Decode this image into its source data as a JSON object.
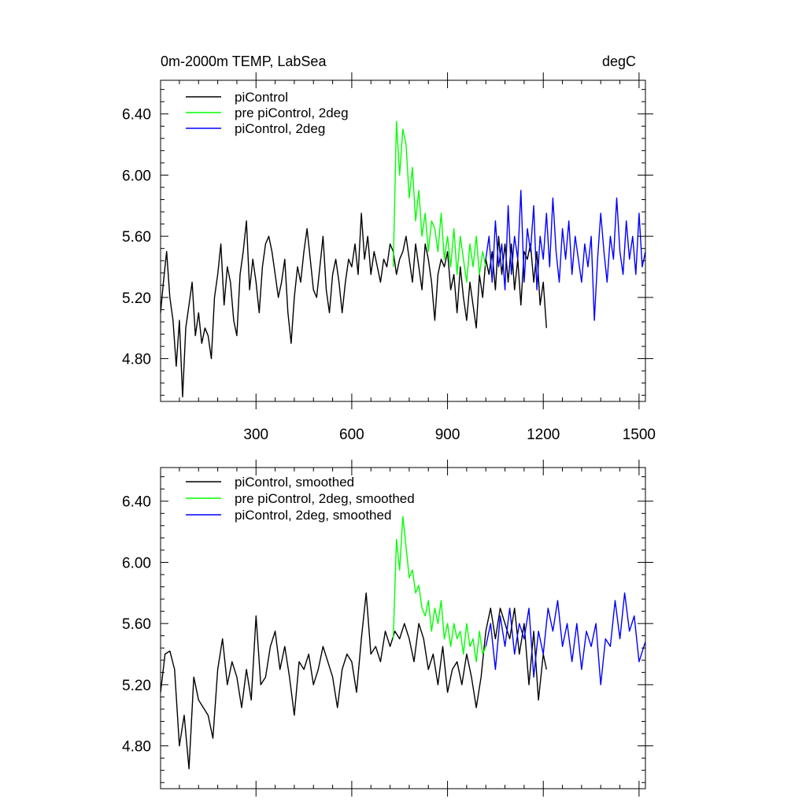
{
  "chart_data": [
    {
      "type": "line",
      "title_left": "0m-2000m TEMP, LabSea",
      "title_right": "degC",
      "xlabel": "",
      "ylabel": "",
      "xlim": [
        1,
        1520
      ],
      "ylim": [
        4.52,
        6.62
      ],
      "xticks": [
        300,
        600,
        900,
        1200,
        1500
      ],
      "xtick_labels": [
        "300",
        "600",
        "900",
        "1200",
        "1500"
      ],
      "show_xtick_labels": true,
      "yticks": [
        4.8,
        5.2,
        5.6,
        6.0,
        6.4
      ],
      "ytick_labels": [
        "4.80",
        "5.20",
        "5.60",
        "6.00",
        "6.40"
      ],
      "legend": [
        "piControl",
        "pre piControl, 2deg",
        "piControl, 2deg"
      ],
      "series": [
        {
          "name": "piControl",
          "color": "#000000",
          "x": [
            1,
            10,
            20,
            30,
            40,
            50,
            60,
            70,
            80,
            90,
            100,
            110,
            120,
            130,
            140,
            150,
            160,
            170,
            180,
            190,
            200,
            210,
            220,
            230,
            240,
            250,
            260,
            270,
            280,
            290,
            300,
            310,
            320,
            330,
            340,
            350,
            360,
            370,
            380,
            390,
            400,
            410,
            420,
            430,
            440,
            450,
            460,
            470,
            480,
            490,
            500,
            510,
            520,
            530,
            540,
            550,
            560,
            570,
            580,
            590,
            600,
            610,
            620,
            630,
            640,
            650,
            660,
            670,
            680,
            690,
            700,
            710,
            720,
            730,
            740,
            750,
            760,
            770,
            780,
            790,
            800,
            810,
            820,
            830,
            840,
            850,
            860,
            870,
            880,
            890,
            900,
            910,
            920,
            930,
            940,
            950,
            960,
            970,
            980,
            990,
            1000,
            1010,
            1020,
            1030,
            1040,
            1050,
            1060,
            1070,
            1080,
            1090,
            1100,
            1110,
            1120,
            1130,
            1140,
            1150,
            1160,
            1170,
            1180,
            1190,
            1200,
            1210
          ],
          "y": [
            5.1,
            5.3,
            5.5,
            5.2,
            5.05,
            4.75,
            5.05,
            4.55,
            5.0,
            5.15,
            5.3,
            4.95,
            5.1,
            4.9,
            5.0,
            4.95,
            4.8,
            5.2,
            5.35,
            5.55,
            5.15,
            5.4,
            5.3,
            5.05,
            4.95,
            5.35,
            5.5,
            5.7,
            5.25,
            5.45,
            5.3,
            5.1,
            5.4,
            5.55,
            5.6,
            5.5,
            5.35,
            5.2,
            5.3,
            5.45,
            5.1,
            4.9,
            5.2,
            5.4,
            5.3,
            5.5,
            5.65,
            5.45,
            5.25,
            5.2,
            5.4,
            5.6,
            5.25,
            5.1,
            5.35,
            5.45,
            5.3,
            5.1,
            5.3,
            5.45,
            5.4,
            5.55,
            5.35,
            5.75,
            5.45,
            5.6,
            5.35,
            5.5,
            5.4,
            5.3,
            5.45,
            5.4,
            5.55,
            5.5,
            5.35,
            5.45,
            5.5,
            5.6,
            5.45,
            5.3,
            5.55,
            5.4,
            5.25,
            5.55,
            5.45,
            5.3,
            5.05,
            5.35,
            5.45,
            5.4,
            5.5,
            5.25,
            5.35,
            5.1,
            5.4,
            5.2,
            5.05,
            5.3,
            5.15,
            5.0,
            5.35,
            5.2,
            5.45,
            5.35,
            5.5,
            5.25,
            5.6,
            5.35,
            5.55,
            5.3,
            5.55,
            5.25,
            5.45,
            5.15,
            5.5,
            5.45,
            5.55,
            5.3,
            5.5,
            5.15,
            5.3,
            5.0
          ]
        },
        {
          "name": "pre piControl, 2deg",
          "color": "#00ff00",
          "x": [
            730,
            740,
            750,
            760,
            770,
            780,
            790,
            800,
            810,
            820,
            830,
            840,
            850,
            860,
            870,
            880,
            890,
            900,
            910,
            920,
            930,
            940,
            950,
            960,
            970,
            980,
            990,
            1000,
            1010,
            1020
          ],
          "y": [
            5.4,
            6.35,
            6.0,
            6.3,
            6.2,
            5.85,
            6.05,
            5.7,
            5.9,
            5.6,
            5.75,
            5.5,
            5.7,
            5.65,
            5.5,
            5.75,
            5.45,
            5.6,
            5.4,
            5.65,
            5.35,
            5.6,
            5.45,
            5.3,
            5.55,
            5.4,
            5.6,
            5.35,
            5.5,
            5.4
          ]
        },
        {
          "name": "piControl, 2deg",
          "color": "#0000ff",
          "x": [
            1020,
            1030,
            1040,
            1050,
            1060,
            1070,
            1080,
            1090,
            1100,
            1110,
            1120,
            1130,
            1140,
            1150,
            1160,
            1170,
            1180,
            1190,
            1200,
            1210,
            1220,
            1230,
            1240,
            1250,
            1260,
            1270,
            1280,
            1290,
            1300,
            1310,
            1320,
            1330,
            1340,
            1350,
            1360,
            1370,
            1380,
            1390,
            1400,
            1410,
            1420,
            1430,
            1440,
            1450,
            1460,
            1470,
            1480,
            1490,
            1500,
            1510,
            1520
          ],
          "y": [
            5.45,
            5.6,
            5.3,
            5.7,
            5.4,
            5.55,
            5.25,
            5.8,
            5.35,
            5.6,
            5.45,
            5.9,
            5.3,
            5.65,
            5.5,
            5.8,
            5.25,
            5.6,
            5.45,
            5.75,
            5.4,
            5.85,
            5.5,
            5.3,
            5.65,
            5.45,
            5.7,
            5.35,
            5.6,
            5.45,
            5.3,
            5.55,
            5.4,
            5.6,
            5.05,
            5.45,
            5.75,
            5.5,
            5.3,
            5.6,
            5.45,
            5.85,
            5.5,
            5.35,
            5.7,
            5.45,
            5.6,
            5.35,
            5.75,
            5.4,
            5.5
          ]
        }
      ]
    },
    {
      "type": "line",
      "title_left": "",
      "title_right": "",
      "xlabel": "",
      "ylabel": "",
      "xlim": [
        1,
        1520
      ],
      "ylim": [
        4.52,
        6.62
      ],
      "xticks": [
        300,
        600,
        900,
        1200,
        1500
      ],
      "xtick_labels": [
        "300",
        "600",
        "900",
        "1200",
        "1500"
      ],
      "show_xtick_labels": false,
      "yticks": [
        4.8,
        5.2,
        5.6,
        6.0,
        6.4
      ],
      "ytick_labels": [
        "4.80",
        "5.20",
        "5.60",
        "6.00",
        "6.40"
      ],
      "legend": [
        "piControl, smoothed",
        "pre piControl, 2deg, smoothed",
        "piControl, 2deg, smoothed"
      ],
      "series": [
        {
          "name": "piControl, smoothed",
          "color": "#000000",
          "x": [
            1,
            15,
            30,
            45,
            60,
            75,
            90,
            105,
            120,
            135,
            150,
            165,
            180,
            195,
            210,
            225,
            240,
            255,
            270,
            285,
            300,
            315,
            330,
            345,
            360,
            375,
            390,
            405,
            420,
            435,
            450,
            465,
            480,
            495,
            510,
            525,
            540,
            555,
            570,
            585,
            600,
            615,
            630,
            645,
            660,
            675,
            690,
            705,
            720,
            735,
            750,
            765,
            780,
            795,
            810,
            825,
            840,
            855,
            870,
            885,
            900,
            915,
            930,
            945,
            960,
            975,
            990,
            1005,
            1020,
            1035,
            1050,
            1065,
            1080,
            1095,
            1110,
            1125,
            1140,
            1155,
            1170,
            1185,
            1200,
            1210
          ],
          "y": [
            5.15,
            5.4,
            5.42,
            5.3,
            4.8,
            5.0,
            4.65,
            5.25,
            5.1,
            5.05,
            5.0,
            4.85,
            5.3,
            5.5,
            5.2,
            5.35,
            5.25,
            5.05,
            5.3,
            5.1,
            5.65,
            5.2,
            5.25,
            5.45,
            5.55,
            5.3,
            5.45,
            5.25,
            5.0,
            5.35,
            5.3,
            5.4,
            5.2,
            5.3,
            5.45,
            5.35,
            5.25,
            5.05,
            5.3,
            5.4,
            5.35,
            5.15,
            5.5,
            5.8,
            5.4,
            5.45,
            5.35,
            5.55,
            5.45,
            5.55,
            5.5,
            5.6,
            5.5,
            5.35,
            5.6,
            5.5,
            5.3,
            5.4,
            5.2,
            5.45,
            5.15,
            5.3,
            5.35,
            5.2,
            5.4,
            5.25,
            5.05,
            5.25,
            5.55,
            5.7,
            5.5,
            5.7,
            5.6,
            5.5,
            5.7,
            5.4,
            5.6,
            5.2,
            5.55,
            5.1,
            5.4,
            5.3
          ]
        },
        {
          "name": "pre piControl, 2deg, smoothed",
          "color": "#00ff00",
          "x": [
            730,
            740,
            750,
            760,
            770,
            780,
            790,
            800,
            810,
            820,
            830,
            840,
            850,
            860,
            870,
            880,
            890,
            900,
            910,
            920,
            930,
            940,
            950,
            960,
            970,
            980,
            990,
            1000,
            1010,
            1020
          ],
          "y": [
            5.5,
            6.15,
            5.95,
            6.3,
            6.1,
            5.9,
            5.95,
            5.8,
            5.85,
            5.7,
            5.65,
            5.75,
            5.55,
            5.7,
            5.6,
            5.75,
            5.5,
            5.6,
            5.45,
            5.6,
            5.5,
            5.55,
            5.4,
            5.6,
            5.45,
            5.5,
            5.35,
            5.55,
            5.4,
            5.45
          ]
        },
        {
          "name": "piControl, 2deg, smoothed",
          "color": "#0000ff",
          "x": [
            1020,
            1035,
            1050,
            1065,
            1080,
            1095,
            1110,
            1125,
            1140,
            1155,
            1170,
            1185,
            1200,
            1215,
            1230,
            1245,
            1260,
            1275,
            1290,
            1305,
            1320,
            1335,
            1350,
            1365,
            1380,
            1395,
            1410,
            1425,
            1440,
            1455,
            1470,
            1485,
            1500,
            1515,
            1520
          ],
          "y": [
            5.45,
            5.6,
            5.3,
            5.65,
            5.45,
            5.7,
            5.4,
            5.6,
            5.5,
            5.7,
            5.25,
            5.55,
            5.4,
            5.7,
            5.55,
            5.75,
            5.45,
            5.6,
            5.35,
            5.6,
            5.3,
            5.55,
            5.45,
            5.6,
            5.2,
            5.5,
            5.45,
            5.75,
            5.5,
            5.8,
            5.55,
            5.65,
            5.35,
            5.45,
            5.48
          ]
        }
      ]
    }
  ]
}
